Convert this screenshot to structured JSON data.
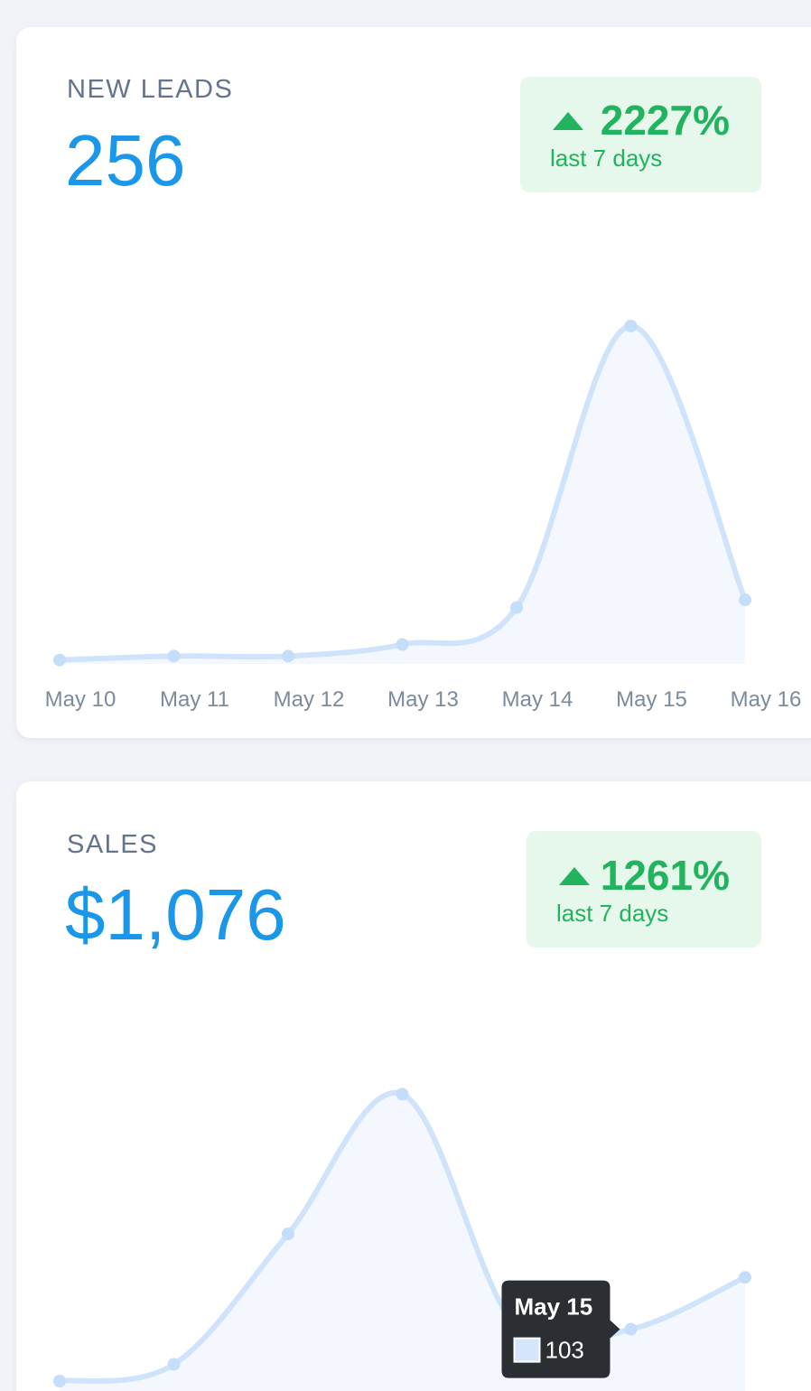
{
  "chart_data": [
    {
      "type": "line",
      "title": "NEW LEADS",
      "headline": "256",
      "badge": {
        "change": "2227%",
        "period": "last 7 days"
      },
      "categories": [
        "May 10",
        "May 11",
        "May 12",
        "May 13",
        "May 14",
        "May 15",
        "May 16"
      ],
      "values": [
        2,
        4,
        4,
        10,
        29,
        174,
        33
      ],
      "color": "#cfe3fb"
    },
    {
      "type": "line",
      "title": "SALES",
      "headline": "$1,076",
      "badge": {
        "change": "1261%",
        "period": "last 7 days"
      },
      "values": [
        41,
        61,
        217,
        384,
        105,
        103,
        165
      ],
      "color": "#cfe3fb",
      "tooltip": {
        "title": "May 15",
        "index": 5
      }
    }
  ]
}
